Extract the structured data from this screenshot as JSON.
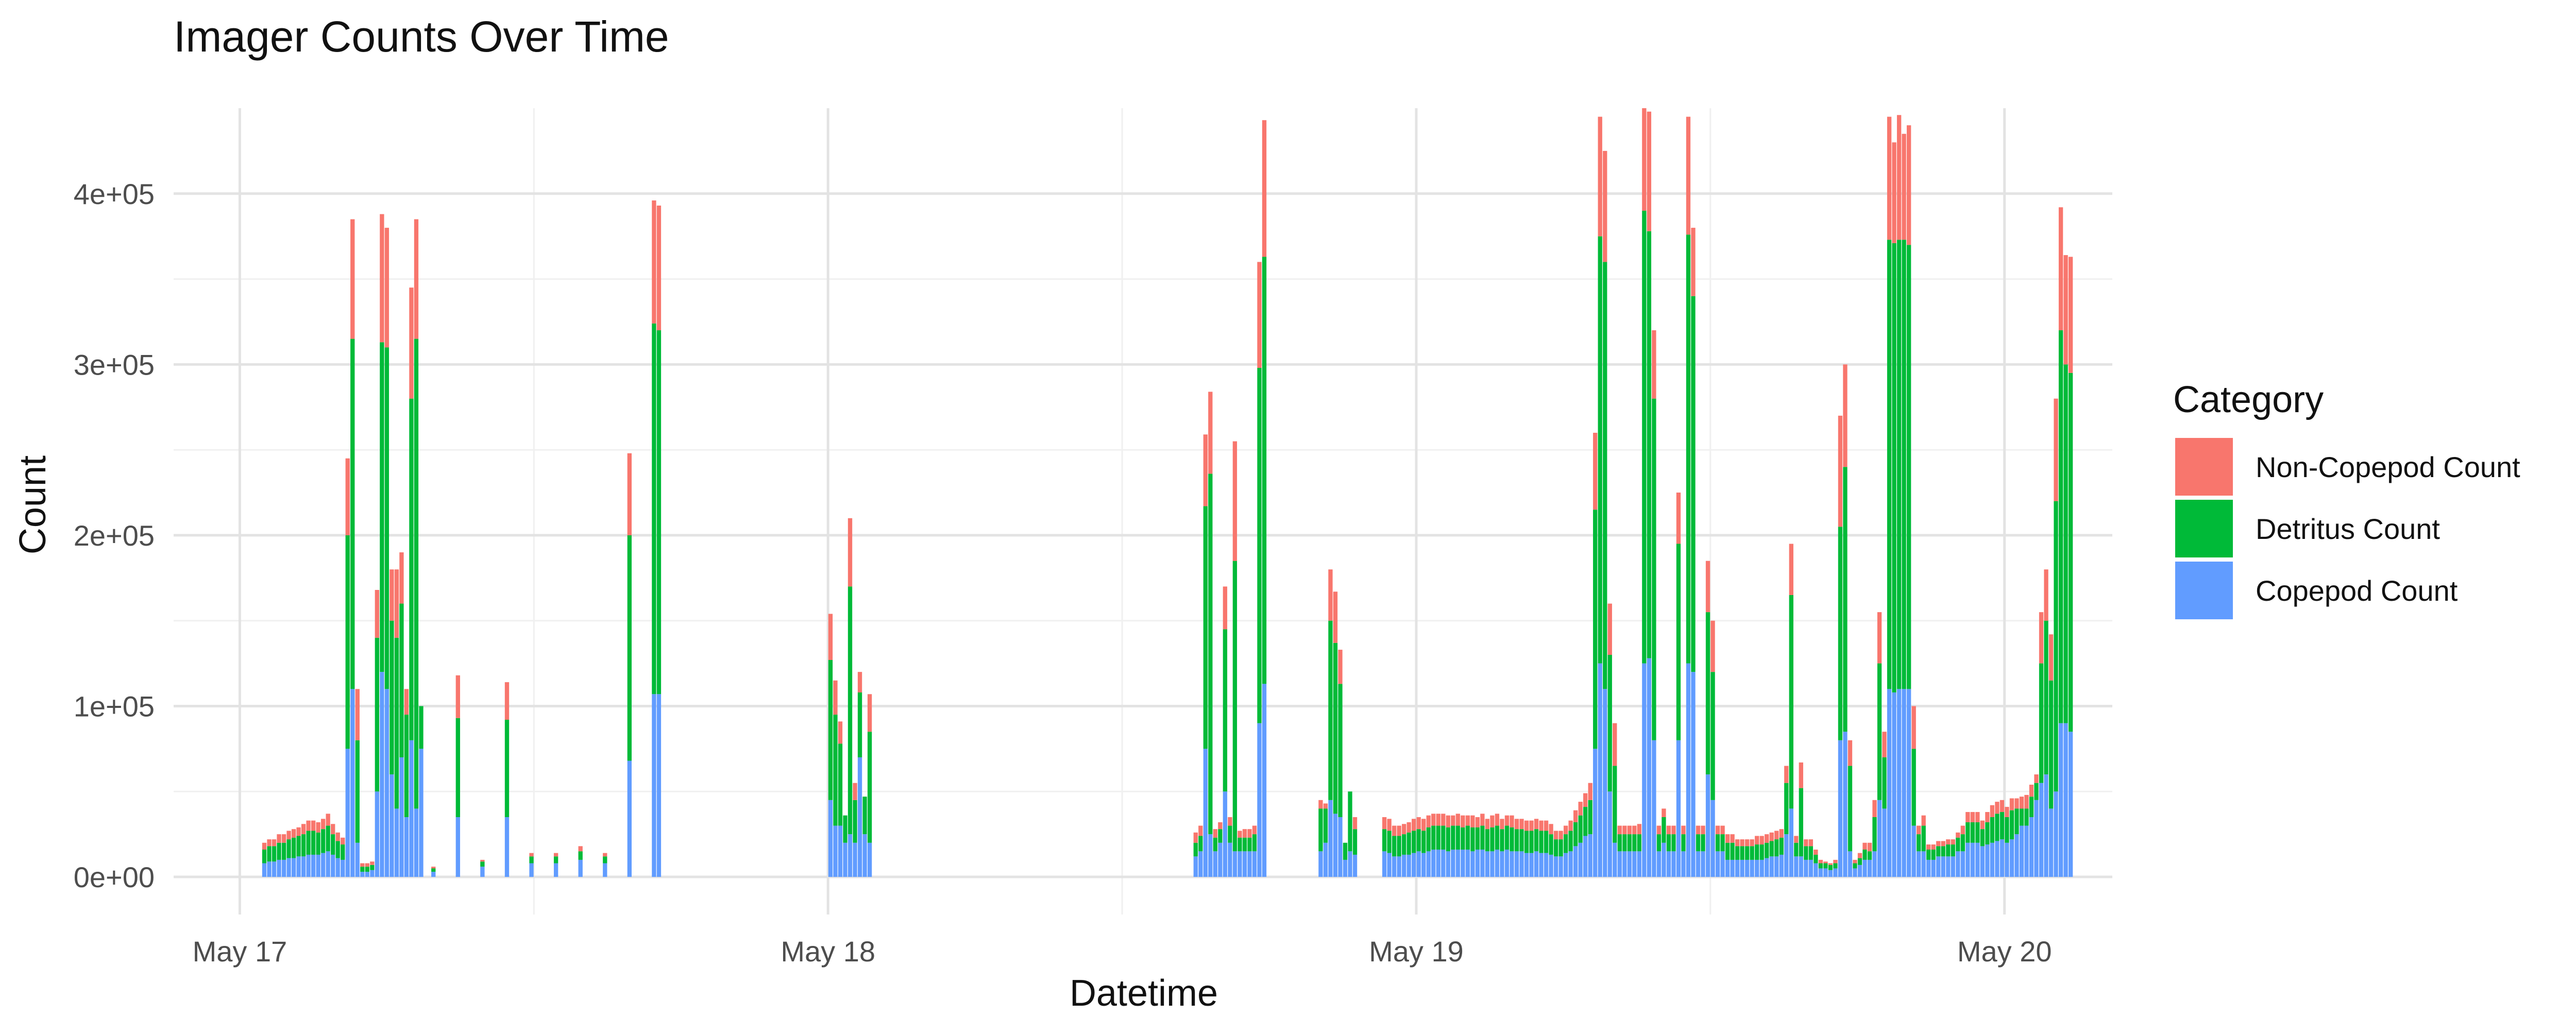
{
  "chart_data": {
    "type": "bar",
    "stacked": true,
    "title": "Imager Counts Over Time",
    "xlabel": "Datetime",
    "ylabel": "Count",
    "x_ticks": [
      {
        "value": 0,
        "label": "May 17"
      },
      {
        "value": 24,
        "label": "May 18"
      },
      {
        "value": 48,
        "label": "May 19"
      },
      {
        "value": 72,
        "label": "May 20"
      }
    ],
    "y_ticks": [
      {
        "value": 0,
        "label": "0e+00"
      },
      {
        "value": 100000,
        "label": "1e+05"
      },
      {
        "value": 200000,
        "label": "2e+05"
      },
      {
        "value": 300000,
        "label": "3e+05"
      },
      {
        "value": 400000,
        "label": "4e+05"
      }
    ],
    "xlim": [
      -2.7,
      76.4
    ],
    "ylim": [
      -22000,
      450000
    ],
    "x_unit": "hours after May 17 00:00",
    "grid": true,
    "legend_position": "right",
    "legend_title": "Category",
    "legend_order": [
      "Non-Copepod Count",
      "Detritus Count",
      "Copepod Count"
    ],
    "colors": {
      "Copepod Count": "#619cff",
      "Detritus Count": "#00ba38",
      "Non-Copepod Count": "#f8766d",
      "grid_major": "#e3e3e3",
      "grid_minor": "#f0f0f0"
    },
    "series_names": [
      "Copepod Count",
      "Detritus Count",
      "Non-Copepod Count"
    ],
    "bars": [
      [
        1.0,
        8000,
        8000,
        4000
      ],
      [
        1.2,
        9000,
        9000,
        4000
      ],
      [
        1.4,
        9000,
        9000,
        4000
      ],
      [
        1.6,
        10000,
        10000,
        5000
      ],
      [
        1.8,
        10000,
        10000,
        5000
      ],
      [
        2.0,
        11000,
        11000,
        5000
      ],
      [
        2.2,
        11000,
        12000,
        5000
      ],
      [
        2.4,
        12000,
        12000,
        5000
      ],
      [
        2.6,
        12000,
        13000,
        6000
      ],
      [
        2.8,
        13000,
        14000,
        6000
      ],
      [
        3.0,
        13000,
        14000,
        6000
      ],
      [
        3.2,
        13000,
        13000,
        6000
      ],
      [
        3.4,
        14000,
        14000,
        6000
      ],
      [
        3.6,
        15000,
        15000,
        7000
      ],
      [
        3.8,
        13000,
        12000,
        6000
      ],
      [
        4.0,
        11000,
        10000,
        5000
      ],
      [
        4.2,
        10000,
        9000,
        4000
      ],
      [
        4.4,
        75000,
        125000,
        45000
      ],
      [
        4.6,
        110000,
        205000,
        70000
      ],
      [
        4.8,
        20000,
        60000,
        30000
      ],
      [
        5.0,
        3000,
        3000,
        2000
      ],
      [
        5.2,
        3000,
        3000,
        2000
      ],
      [
        5.4,
        4000,
        3000,
        2000
      ],
      [
        5.6,
        50000,
        90000,
        28000
      ],
      [
        5.8,
        120000,
        193000,
        75000
      ],
      [
        6.0,
        110000,
        200000,
        70000
      ],
      [
        6.2,
        60000,
        90000,
        30000
      ],
      [
        6.4,
        40000,
        100000,
        40000
      ],
      [
        6.6,
        70000,
        90000,
        30000
      ],
      [
        6.8,
        35000,
        60000,
        15000
      ],
      [
        7.0,
        80000,
        200000,
        65000
      ],
      [
        7.2,
        40000,
        275000,
        70000
      ],
      [
        7.4,
        75000,
        25000,
        0
      ],
      [
        7.9,
        3000,
        2000,
        1000
      ],
      [
        8.9,
        35000,
        58000,
        25000
      ],
      [
        9.9,
        6000,
        3000,
        1000
      ],
      [
        10.9,
        35000,
        57000,
        22000
      ],
      [
        11.9,
        8000,
        4000,
        2000
      ],
      [
        12.9,
        8000,
        4000,
        2000
      ],
      [
        13.9,
        10000,
        5000,
        3000
      ],
      [
        14.9,
        8000,
        4000,
        2000
      ],
      [
        15.9,
        68000,
        132000,
        48000
      ],
      [
        16.9,
        107000,
        217000,
        72000
      ],
      [
        17.1,
        107000,
        213000,
        73000
      ],
      [
        24.1,
        45000,
        82000,
        27000
      ],
      [
        24.3,
        30000,
        65000,
        20000
      ],
      [
        24.5,
        30000,
        48000,
        13000
      ],
      [
        24.7,
        20000,
        16000,
        0
      ],
      [
        24.9,
        25000,
        145000,
        40000
      ],
      [
        25.1,
        20000,
        25000,
        10000
      ],
      [
        25.3,
        70000,
        38000,
        12000
      ],
      [
        25.5,
        25000,
        22000,
        0
      ],
      [
        25.7,
        20000,
        65000,
        22000
      ],
      [
        39.0,
        12000,
        8000,
        6000
      ],
      [
        39.2,
        15000,
        9000,
        6000
      ],
      [
        39.4,
        75000,
        142000,
        42000
      ],
      [
        39.6,
        25000,
        211000,
        48000
      ],
      [
        39.8,
        15000,
        8000,
        5000
      ],
      [
        40.0,
        20000,
        8000,
        4000
      ],
      [
        40.2,
        50000,
        95000,
        25000
      ],
      [
        40.4,
        20000,
        10000,
        5000
      ],
      [
        40.6,
        15000,
        170000,
        70000
      ],
      [
        40.8,
        15000,
        8000,
        4000
      ],
      [
        41.0,
        15000,
        8000,
        5000
      ],
      [
        41.2,
        15000,
        8000,
        5000
      ],
      [
        41.4,
        15000,
        10000,
        5000
      ],
      [
        41.6,
        90000,
        208000,
        62000
      ],
      [
        41.8,
        113000,
        250000,
        80000
      ],
      [
        44.1,
        15000,
        25000,
        5000
      ],
      [
        44.3,
        20000,
        20000,
        3000
      ],
      [
        44.5,
        45000,
        105000,
        30000
      ],
      [
        44.7,
        37000,
        100000,
        30000
      ],
      [
        44.9,
        35000,
        78000,
        20000
      ],
      [
        45.1,
        10000,
        10000,
        0
      ],
      [
        45.3,
        15000,
        35000,
        0
      ],
      [
        45.5,
        13000,
        15000,
        7000
      ],
      [
        46.7,
        15000,
        13000,
        7000
      ],
      [
        46.9,
        14000,
        13000,
        7000
      ],
      [
        47.1,
        12000,
        12000,
        6000
      ],
      [
        47.3,
        12000,
        12000,
        6000
      ],
      [
        47.5,
        13000,
        12000,
        6000
      ],
      [
        47.7,
        13000,
        13000,
        6000
      ],
      [
        47.9,
        14000,
        13000,
        7000
      ],
      [
        48.1,
        15000,
        13000,
        7000
      ],
      [
        48.3,
        14000,
        13000,
        7000
      ],
      [
        48.5,
        15000,
        14000,
        7000
      ],
      [
        48.7,
        16000,
        14000,
        7000
      ],
      [
        48.9,
        16000,
        14000,
        7000
      ],
      [
        49.1,
        16000,
        14000,
        7000
      ],
      [
        49.3,
        15000,
        14000,
        7000
      ],
      [
        49.5,
        16000,
        14000,
        6000
      ],
      [
        49.7,
        16000,
        14000,
        7000
      ],
      [
        49.9,
        16000,
        13000,
        7000
      ],
      [
        50.1,
        16000,
        14000,
        6000
      ],
      [
        50.3,
        15000,
        14000,
        7000
      ],
      [
        50.5,
        16000,
        13000,
        6000
      ],
      [
        50.7,
        16000,
        14000,
        7000
      ],
      [
        50.9,
        15000,
        13000,
        6000
      ],
      [
        51.1,
        15000,
        14000,
        7000
      ],
      [
        51.3,
        16000,
        14000,
        7000
      ],
      [
        51.5,
        15000,
        13000,
        6000
      ],
      [
        51.7,
        16000,
        14000,
        6000
      ],
      [
        51.9,
        15000,
        14000,
        7000
      ],
      [
        52.1,
        15000,
        13000,
        6000
      ],
      [
        52.3,
        15000,
        13000,
        6000
      ],
      [
        52.5,
        14000,
        13000,
        6000
      ],
      [
        52.7,
        14000,
        13000,
        6000
      ],
      [
        52.9,
        15000,
        13000,
        6000
      ],
      [
        53.1,
        14000,
        13000,
        6000
      ],
      [
        53.3,
        14000,
        13000,
        6000
      ],
      [
        53.5,
        13000,
        12000,
        6000
      ],
      [
        53.7,
        12000,
        10000,
        5000
      ],
      [
        53.9,
        12000,
        10000,
        5000
      ],
      [
        54.1,
        14000,
        11000,
        5000
      ],
      [
        54.3,
        15000,
        12000,
        6000
      ],
      [
        54.5,
        18000,
        14000,
        7000
      ],
      [
        54.7,
        20000,
        16000,
        8000
      ],
      [
        54.9,
        24000,
        17000,
        8000
      ],
      [
        55.1,
        25000,
        20000,
        10000
      ],
      [
        55.3,
        75000,
        140000,
        45000
      ],
      [
        55.5,
        125000,
        250000,
        70000
      ],
      [
        55.7,
        110000,
        250000,
        65000
      ],
      [
        55.9,
        50000,
        80000,
        30000
      ],
      [
        56.1,
        20000,
        45000,
        25000
      ],
      [
        56.3,
        15000,
        10000,
        5000
      ],
      [
        56.5,
        15000,
        10000,
        5000
      ],
      [
        56.7,
        15000,
        10000,
        5000
      ],
      [
        56.9,
        15000,
        10000,
        5000
      ],
      [
        57.1,
        15000,
        10000,
        6000
      ],
      [
        57.3,
        125000,
        265000,
        60000
      ],
      [
        57.5,
        128000,
        250000,
        70000
      ],
      [
        57.7,
        80000,
        200000,
        40000
      ],
      [
        57.9,
        15000,
        10000,
        5000
      ],
      [
        58.1,
        20000,
        15000,
        5000
      ],
      [
        58.3,
        15000,
        10000,
        5000
      ],
      [
        58.5,
        15000,
        10000,
        5000
      ],
      [
        58.7,
        80000,
        115000,
        30000
      ],
      [
        58.9,
        15000,
        10000,
        5000
      ],
      [
        59.1,
        125000,
        251000,
        69000
      ],
      [
        59.3,
        120000,
        220000,
        40000
      ],
      [
        59.5,
        15000,
        10000,
        5000
      ],
      [
        59.7,
        15000,
        10000,
        5000
      ],
      [
        59.9,
        60000,
        95000,
        30000
      ],
      [
        60.1,
        45000,
        75000,
        30000
      ],
      [
        60.3,
        15000,
        10000,
        5000
      ],
      [
        60.5,
        15000,
        10000,
        5000
      ],
      [
        60.7,
        10000,
        10000,
        5000
      ],
      [
        60.9,
        10000,
        10000,
        5000
      ],
      [
        61.1,
        10000,
        8000,
        4000
      ],
      [
        61.3,
        10000,
        8000,
        4000
      ],
      [
        61.5,
        10000,
        8000,
        4000
      ],
      [
        61.7,
        10000,
        8000,
        4000
      ],
      [
        61.9,
        10000,
        9000,
        5000
      ],
      [
        62.1,
        10000,
        9000,
        5000
      ],
      [
        62.3,
        11000,
        9000,
        5000
      ],
      [
        62.5,
        12000,
        9000,
        5000
      ],
      [
        62.7,
        12000,
        10000,
        5000
      ],
      [
        62.9,
        13000,
        10000,
        5000
      ],
      [
        63.1,
        25000,
        30000,
        10000
      ],
      [
        63.3,
        40000,
        125000,
        30000
      ],
      [
        63.5,
        12000,
        8000,
        4000
      ],
      [
        63.7,
        12000,
        40000,
        15000
      ],
      [
        63.9,
        10000,
        8000,
        4000
      ],
      [
        64.1,
        10000,
        8000,
        4000
      ],
      [
        64.3,
        8000,
        5000,
        3000
      ],
      [
        64.5,
        5000,
        3000,
        2000
      ],
      [
        64.7,
        5000,
        3000,
        1000
      ],
      [
        64.9,
        4000,
        3000,
        1000
      ],
      [
        65.1,
        5000,
        3000,
        2000
      ],
      [
        65.3,
        80000,
        125000,
        65000
      ],
      [
        65.5,
        85000,
        155000,
        60000
      ],
      [
        65.7,
        15000,
        50000,
        15000
      ],
      [
        65.9,
        5000,
        3000,
        2000
      ],
      [
        66.1,
        7000,
        4000,
        3000
      ],
      [
        66.3,
        10000,
        6000,
        4000
      ],
      [
        66.5,
        10000,
        5000,
        5000
      ],
      [
        66.7,
        15000,
        20000,
        10000
      ],
      [
        66.9,
        45000,
        80000,
        30000
      ],
      [
        67.1,
        40000,
        30000,
        15000
      ],
      [
        67.3,
        110000,
        263000,
        72000
      ],
      [
        67.5,
        108000,
        263000,
        59000
      ],
      [
        67.7,
        110000,
        263000,
        73000
      ],
      [
        67.9,
        110000,
        263000,
        62000
      ],
      [
        68.1,
        110000,
        260000,
        70000
      ],
      [
        68.3,
        30000,
        45000,
        25000
      ],
      [
        68.5,
        15000,
        10000,
        5000
      ],
      [
        68.7,
        15000,
        15000,
        6000
      ],
      [
        68.9,
        10000,
        6000,
        3000
      ],
      [
        69.1,
        10000,
        6000,
        3000
      ],
      [
        69.3,
        12000,
        6000,
        3000
      ],
      [
        69.5,
        12000,
        6000,
        3000
      ],
      [
        69.7,
        12000,
        7000,
        3000
      ],
      [
        69.9,
        12000,
        7000,
        3000
      ],
      [
        70.1,
        15000,
        8000,
        3000
      ],
      [
        70.3,
        15000,
        10000,
        5000
      ],
      [
        70.5,
        20000,
        12000,
        6000
      ],
      [
        70.7,
        20000,
        12000,
        6000
      ],
      [
        70.9,
        20000,
        12000,
        6000
      ],
      [
        71.1,
        18000,
        10000,
        5000
      ],
      [
        71.3,
        19000,
        13000,
        6000
      ],
      [
        71.5,
        20000,
        15000,
        7000
      ],
      [
        71.7,
        21000,
        16000,
        7000
      ],
      [
        71.9,
        22000,
        16000,
        7000
      ],
      [
        72.1,
        20000,
        15000,
        6000
      ],
      [
        72.3,
        22000,
        17000,
        7000
      ],
      [
        72.5,
        25000,
        15000,
        6000
      ],
      [
        72.7,
        30000,
        10000,
        7000
      ],
      [
        72.9,
        30000,
        10000,
        8000
      ],
      [
        73.1,
        35000,
        12000,
        7000
      ],
      [
        73.3,
        45000,
        10000,
        5000
      ],
      [
        73.5,
        55000,
        70000,
        30000
      ],
      [
        73.7,
        60000,
        90000,
        30000
      ],
      [
        73.9,
        40000,
        75000,
        27000
      ],
      [
        74.1,
        50000,
        170000,
        60000
      ],
      [
        74.3,
        90000,
        230000,
        72000
      ],
      [
        74.5,
        90000,
        210000,
        64000
      ],
      [
        74.7,
        85000,
        210000,
        68000
      ]
    ]
  }
}
